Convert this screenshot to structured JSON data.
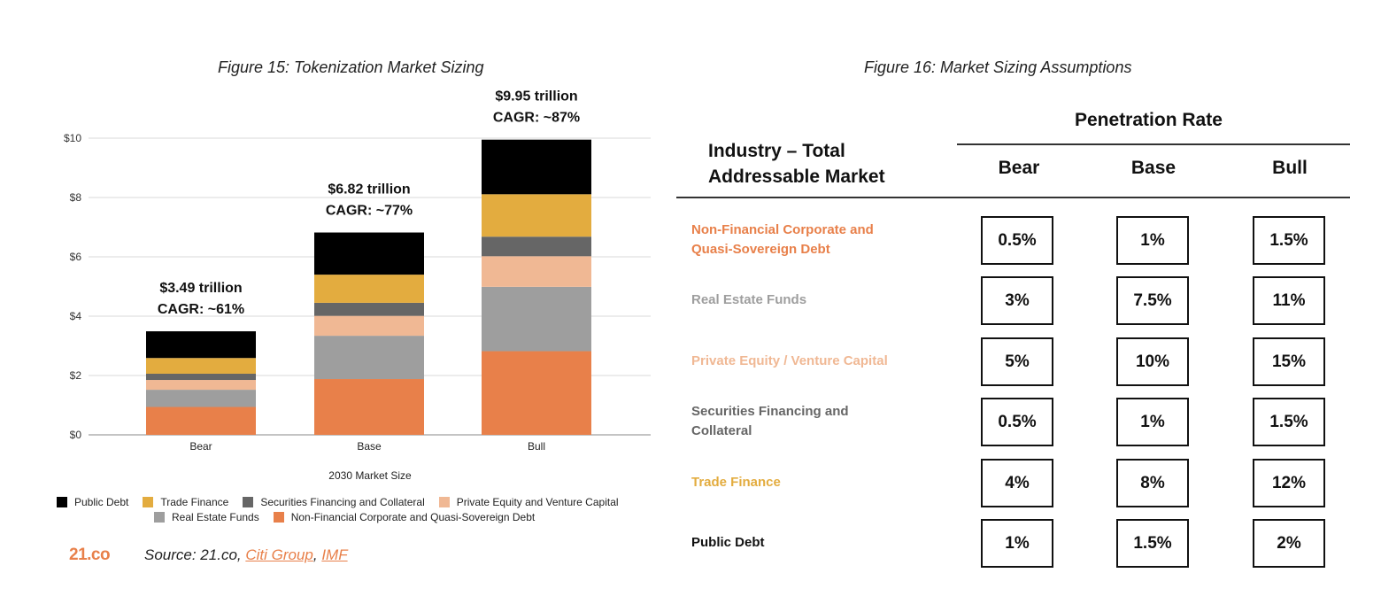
{
  "figure15": {
    "title": "Figure 15: Tokenization Market Sizing",
    "source_prefix": "Source: 21.co, ",
    "source_links": [
      "Citi Group",
      "IMF"
    ],
    "source_sep": ", ",
    "logo": "21.co"
  },
  "figure16": {
    "title": "Figure 16: Market Sizing Assumptions",
    "penetration_header": "Penetration Rate",
    "industry_header": "Industry – Total Addressable Market",
    "columns": [
      "Bear",
      "Base",
      "Bull"
    ],
    "rows": [
      {
        "label": "Non-Financial Corporate and Quasi-Sovereign Debt",
        "color": "#e8804a",
        "values": [
          "0.5%",
          "1%",
          "1.5%"
        ]
      },
      {
        "label": "Real Estate Funds",
        "color": "#9e9e9e",
        "values": [
          "3%",
          "7.5%",
          "11%"
        ]
      },
      {
        "label": "Private Equity / Venture Capital",
        "color": "#f0b894",
        "values": [
          "5%",
          "10%",
          "15%"
        ]
      },
      {
        "label": "Securities Financing and Collateral",
        "color": "#666666",
        "values": [
          "0.5%",
          "1%",
          "1.5%"
        ]
      },
      {
        "label": "Trade Finance",
        "color": "#e3ac3f",
        "values": [
          "4%",
          "8%",
          "12%"
        ]
      },
      {
        "label": "Public Debt",
        "color": "#111111",
        "values": [
          "1%",
          "1.5%",
          "2%"
        ]
      }
    ]
  },
  "colors": {
    "accent": "#e8804a",
    "public_debt": "#000000",
    "trade_finance": "#e3ac3f",
    "securities": "#666666",
    "private_equity": "#f0b894",
    "real_estate": "#9e9e9e",
    "non_financial": "#e8804a"
  },
  "chart_data": {
    "type": "bar",
    "stacked": true,
    "title": "Figure 15: Tokenization Market Sizing",
    "xlabel": "2030 Market Size",
    "ylabel": "",
    "ylim": [
      0,
      10
    ],
    "yticks": [
      "$0",
      "$2",
      "$4",
      "$6",
      "$8",
      "$10"
    ],
    "ytick_values": [
      0,
      2,
      4,
      6,
      8,
      10
    ],
    "categories": [
      "Bear",
      "Base",
      "Bull"
    ],
    "totals": [
      {
        "line1": "$3.49 trillion",
        "line2": "CAGR: ~61%",
        "value": 3.49
      },
      {
        "line1": "$6.82  trillion",
        "line2": "CAGR: ~77%",
        "value": 6.82
      },
      {
        "line1": "$9.95  trillion",
        "line2": "CAGR: ~87%",
        "value": 9.95
      }
    ],
    "series": [
      {
        "name": "Non-Financial Corporate and Quasi-Sovereign Debt",
        "color": "#e8804a",
        "values": [
          0.94,
          1.88,
          2.82
        ]
      },
      {
        "name": "Real Estate Funds",
        "color": "#9e9e9e",
        "values": [
          0.58,
          1.46,
          2.17
        ]
      },
      {
        "name": "Private Equity and Venture Capital",
        "color": "#f0b894",
        "values": [
          0.33,
          0.67,
          1.03
        ]
      },
      {
        "name": "Securities Financing and Collateral",
        "color": "#666666",
        "values": [
          0.21,
          0.44,
          0.66
        ]
      },
      {
        "name": "Trade Finance",
        "color": "#e3ac3f",
        "values": [
          0.53,
          0.95,
          1.43
        ]
      },
      {
        "name": "Public Debt",
        "color": "#000000",
        "values": [
          0.9,
          1.42,
          1.84
        ]
      }
    ],
    "legend": {
      "row1": [
        {
          "label": "Public Debt",
          "color": "#000000"
        },
        {
          "label": "Trade Finance",
          "color": "#e3ac3f"
        },
        {
          "label": "Securities Financing and Collateral",
          "color": "#666666"
        },
        {
          "label": "Private Equity and Venture Capital",
          "color": "#f0b894"
        }
      ],
      "row2": [
        {
          "label": "Real Estate Funds",
          "color": "#9e9e9e"
        },
        {
          "label": "Non-Financial Corporate and Quasi-Sovereign Debt",
          "color": "#e8804a"
        }
      ]
    }
  }
}
